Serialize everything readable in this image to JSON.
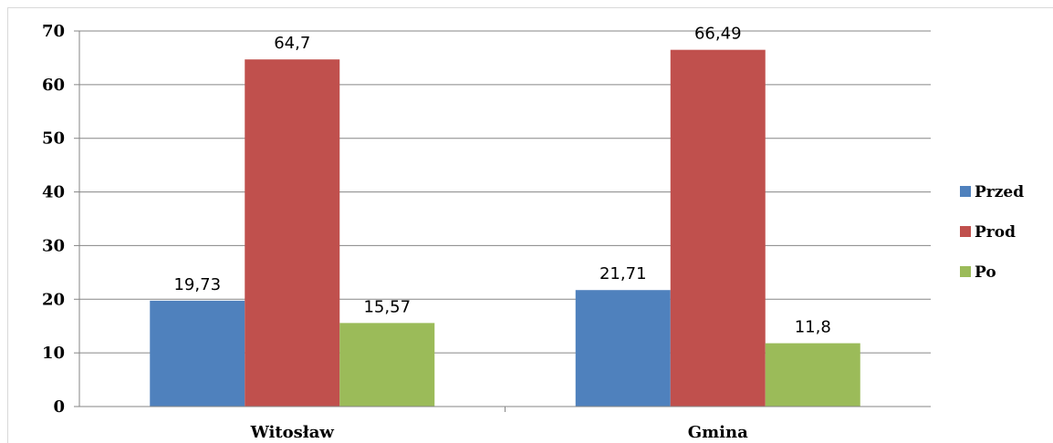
{
  "chart_data": {
    "type": "bar",
    "title": "",
    "xlabel": "",
    "ylabel": "",
    "ylim": [
      0,
      70
    ],
    "yticks": [
      0,
      10,
      20,
      30,
      40,
      50,
      60,
      70
    ],
    "yticks_labels": [
      "0",
      "10",
      "20",
      "30",
      "40",
      "50",
      "60",
      "70"
    ],
    "grid": true,
    "legend_position": "right",
    "categories": [
      "Witosław",
      "Gmina"
    ],
    "series": [
      {
        "name": "Przed",
        "color": "#4f81bd",
        "values": [
          19.73,
          21.71
        ],
        "labels": [
          "19,73",
          "21,71"
        ]
      },
      {
        "name": "Prod",
        "color": "#c0504d",
        "values": [
          64.7,
          66.49
        ],
        "labels": [
          "64,7",
          "66,49"
        ]
      },
      {
        "name": "Po",
        "color": "#9bbb59",
        "values": [
          15.57,
          11.8
        ],
        "labels": [
          "15,57",
          "11,8"
        ]
      }
    ]
  }
}
